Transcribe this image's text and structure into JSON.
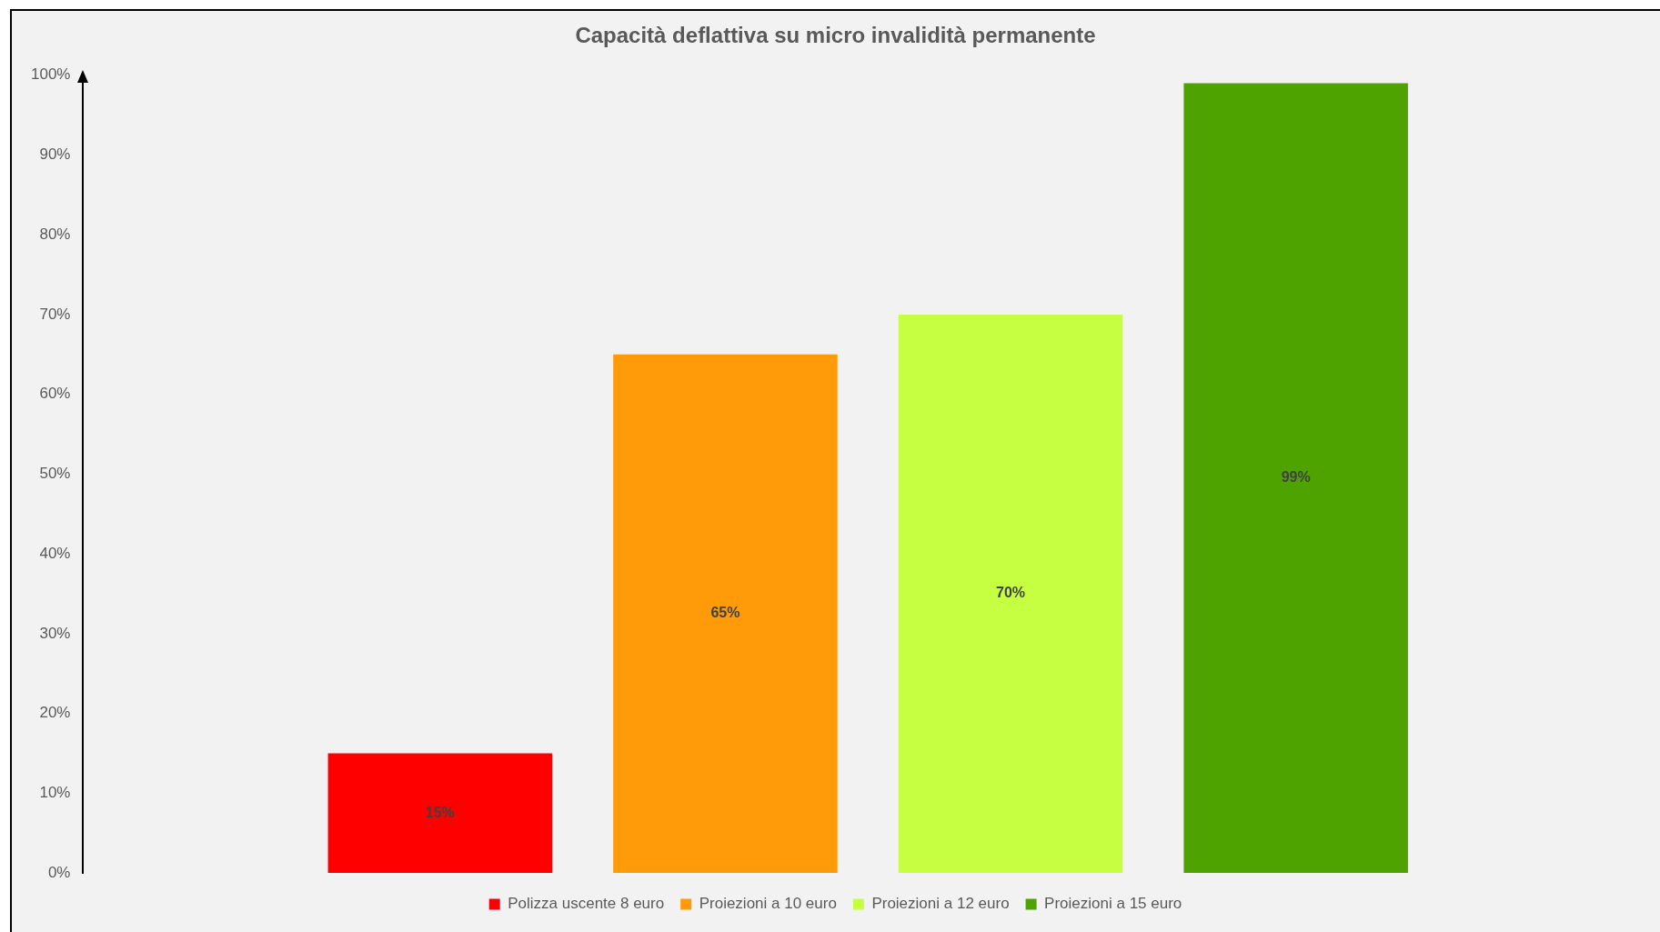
{
  "chart_data": {
    "type": "bar",
    "title": "Capacità deflattiva su micro invalidità permanente",
    "categories": [
      null
    ],
    "series": [
      {
        "name": "Polizza uscente 8 euro",
        "color": "#ff0000",
        "values": [
          15
        ],
        "value_labels": [
          "15%"
        ]
      },
      {
        "name": "Proiezioni a 10 euro",
        "color": "#ff9b09",
        "values": [
          65
        ],
        "value_labels": [
          "65%"
        ]
      },
      {
        "name": "Proiezioni a 12 euro",
        "color": "#c6ff42",
        "values": [
          70
        ],
        "value_labels": [
          "70%"
        ]
      },
      {
        "name": "Proiezioni a 15 euro",
        "color": "#4ea300",
        "values": [
          99
        ],
        "value_labels": [
          "99%"
        ]
      }
    ],
    "ylim": [
      0,
      100
    ],
    "yticks": [
      {
        "value": 0,
        "label": "0%"
      },
      {
        "value": 10,
        "label": "10%"
      },
      {
        "value": 20,
        "label": "20%"
      },
      {
        "value": 30,
        "label": "30%"
      },
      {
        "value": 40,
        "label": "40%"
      },
      {
        "value": 50,
        "label": "50%"
      },
      {
        "value": 60,
        "label": "60%"
      },
      {
        "value": 70,
        "label": "70%"
      },
      {
        "value": 80,
        "label": "80%"
      },
      {
        "value": 90,
        "label": "90%"
      },
      {
        "value": 100,
        "label": "100%"
      }
    ],
    "grid": false,
    "legend": "bottom",
    "tick_labels": "y"
  }
}
